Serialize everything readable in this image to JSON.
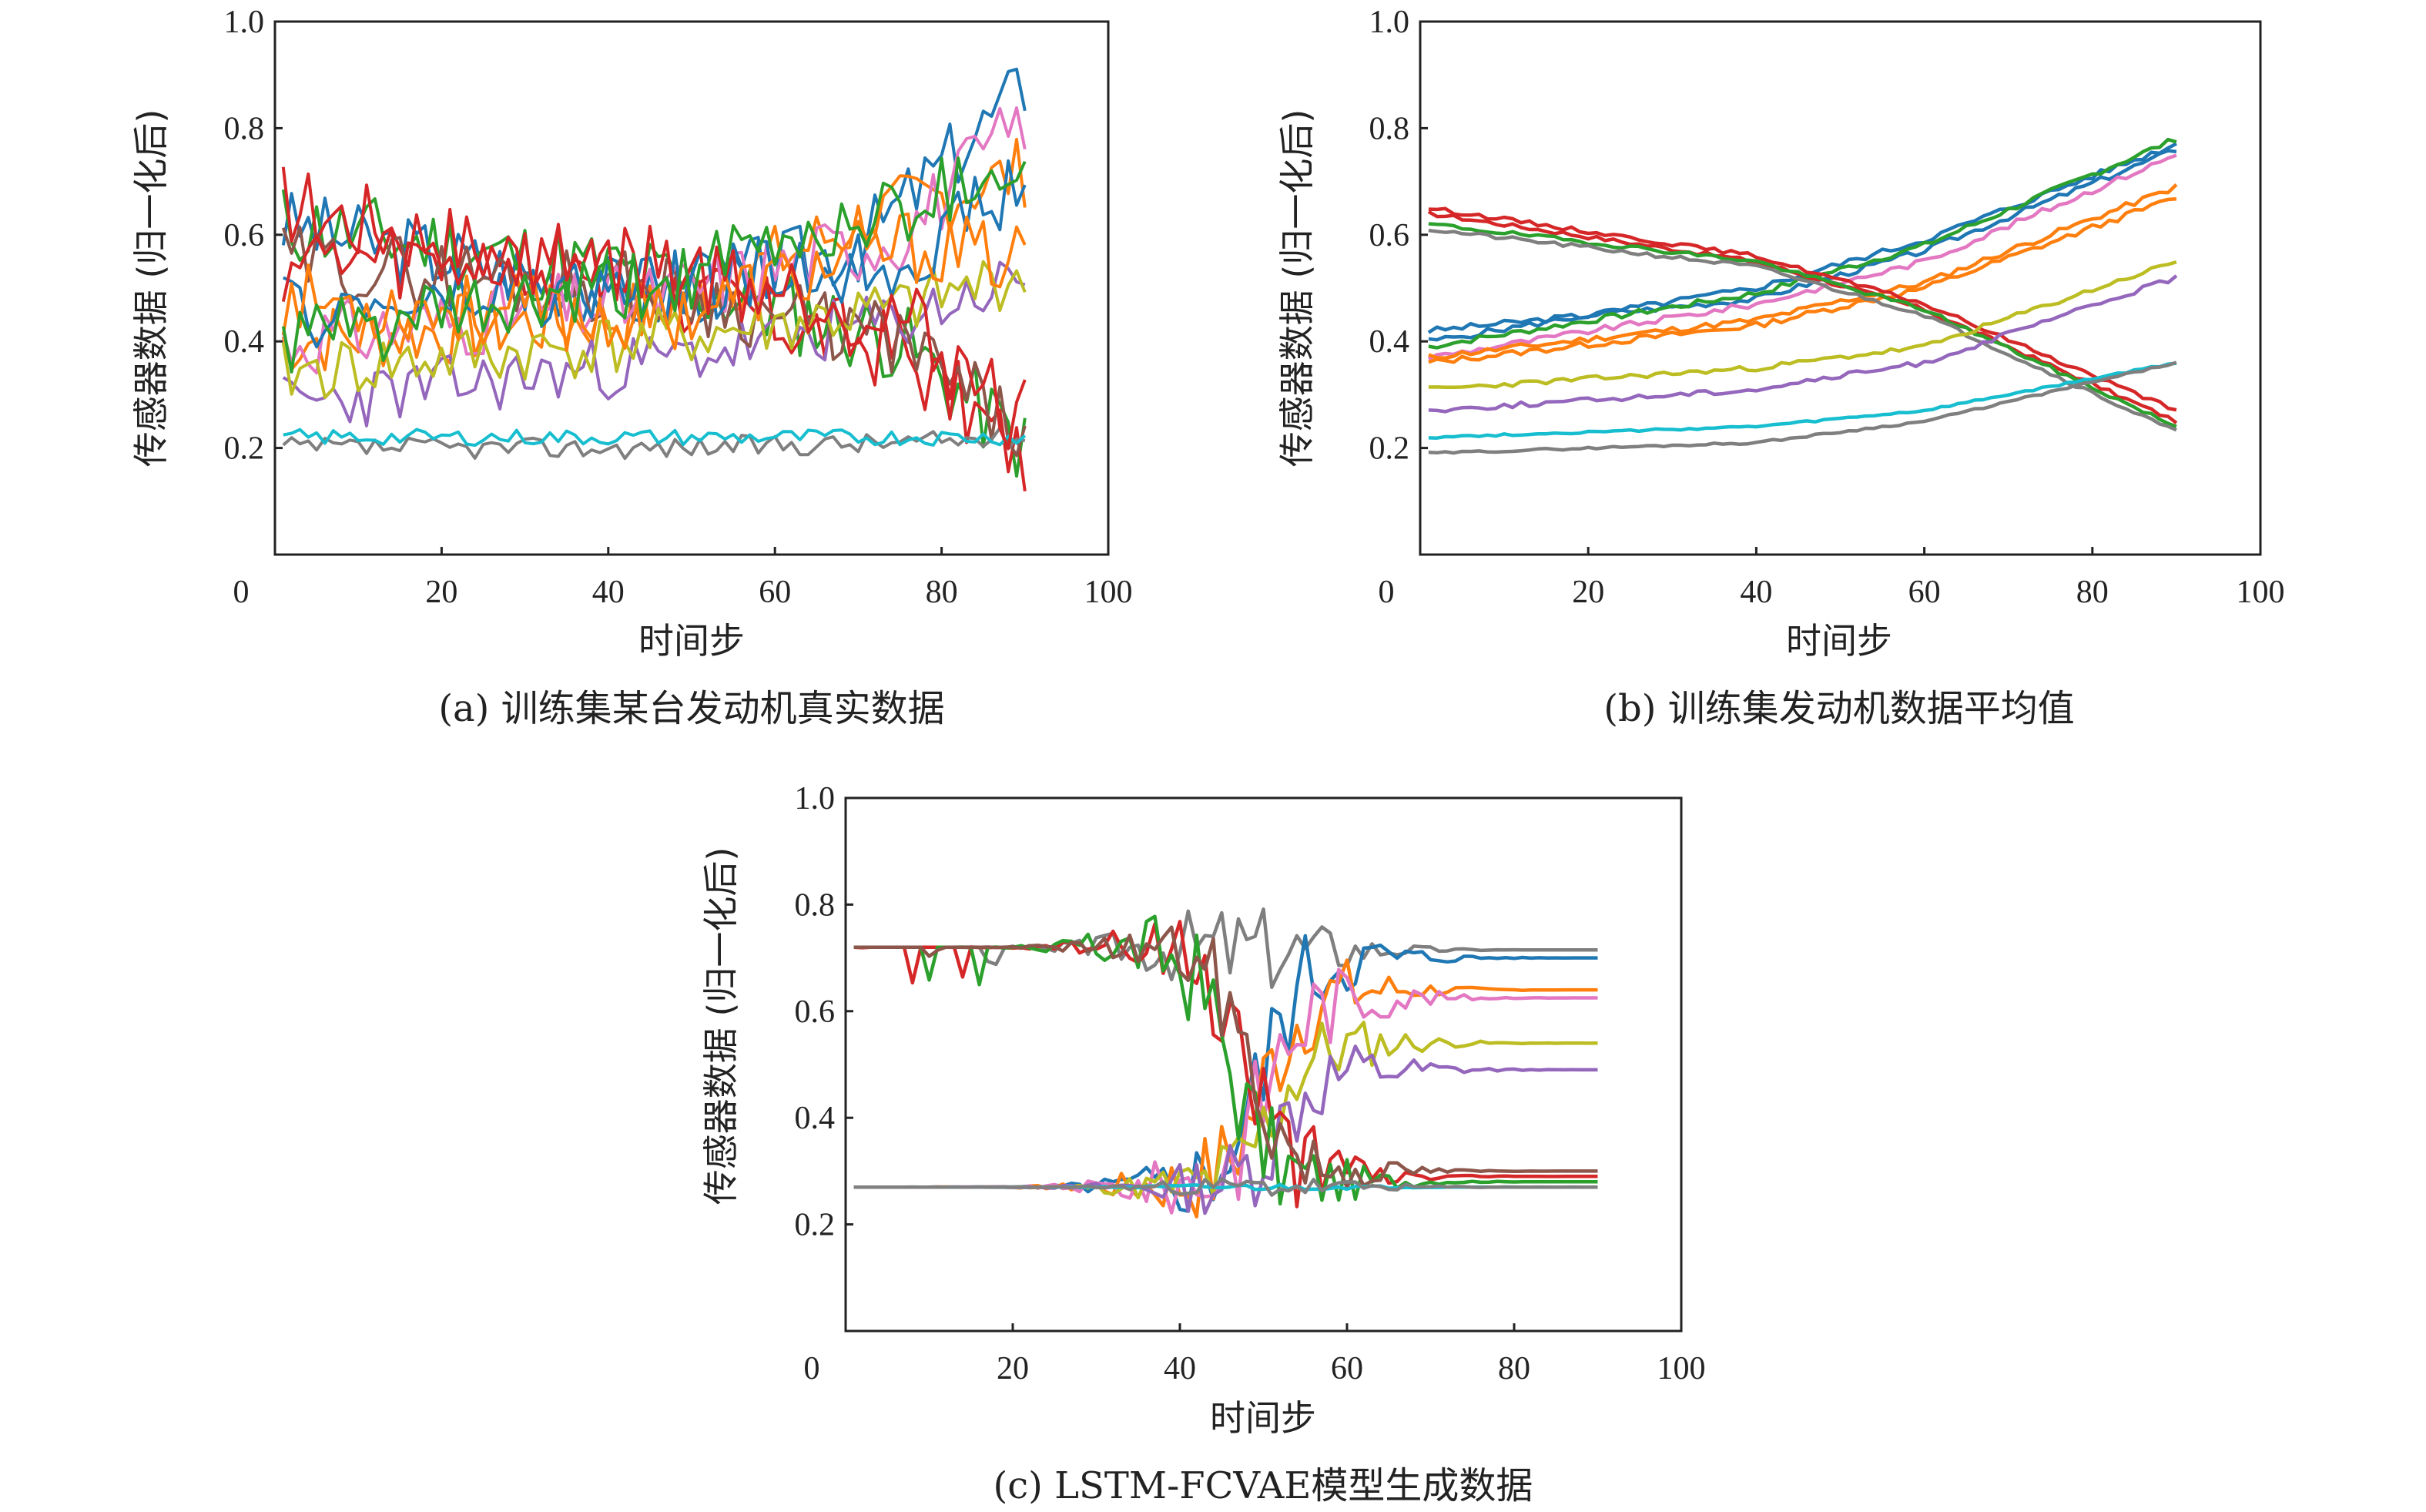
{
  "chart_data": [
    {
      "id": "a",
      "type": "line",
      "caption": "(a) 训练集某台发动机真实数据",
      "xlabel": "时间步",
      "ylabel": "传感器数据 (归一化后)",
      "xlim": [
        0,
        100
      ],
      "ylim": [
        0,
        1.0
      ],
      "xticks": [
        "0",
        "20",
        "40",
        "60",
        "80",
        "100"
      ],
      "yticks": [
        "0.2",
        "0.4",
        "0.6",
        "0.8",
        "1.0"
      ],
      "x_start": 1,
      "x_end": 90,
      "series": [
        {
          "color": "#1f77b4",
          "mode": "noisy",
          "p": [
            [
              1,
              0.62
            ],
            [
              45,
              0.48
            ],
            [
              70,
              0.58
            ],
            [
              90,
              0.88
            ]
          ],
          "amp": 0.07,
          "seed": 3
        },
        {
          "color": "#ff7f0e",
          "mode": "noisy",
          "p": [
            [
              1,
              0.4
            ],
            [
              45,
              0.45
            ],
            [
              70,
              0.62
            ],
            [
              90,
              0.72
            ]
          ],
          "amp": 0.07,
          "seed": 7
        },
        {
          "color": "#2ca02c",
          "mode": "noisy",
          "p": [
            [
              1,
              0.62
            ],
            [
              45,
              0.52
            ],
            [
              75,
              0.4
            ],
            [
              90,
              0.2
            ]
          ],
          "amp": 0.08,
          "seed": 11
        },
        {
          "color": "#d62728",
          "mode": "noisy",
          "p": [
            [
              1,
              0.66
            ],
            [
              45,
              0.5
            ],
            [
              75,
              0.38
            ],
            [
              90,
              0.18
            ]
          ],
          "amp": 0.08,
          "seed": 17
        },
        {
          "color": "#9467bd",
          "mode": "noisy",
          "p": [
            [
              1,
              0.28
            ],
            [
              45,
              0.36
            ],
            [
              75,
              0.44
            ],
            [
              90,
              0.52
            ]
          ],
          "amp": 0.06,
          "seed": 23
        },
        {
          "color": "#8c564b",
          "mode": "noisy",
          "p": [
            [
              1,
              0.55
            ],
            [
              45,
              0.5
            ],
            [
              75,
              0.4
            ],
            [
              90,
              0.22
            ]
          ],
          "amp": 0.07,
          "seed": 29
        },
        {
          "color": "#e377c2",
          "mode": "noisy",
          "p": [
            [
              1,
              0.4
            ],
            [
              45,
              0.48
            ],
            [
              75,
              0.6
            ],
            [
              90,
              0.82
            ]
          ],
          "amp": 0.07,
          "seed": 31
        },
        {
          "color": "#7f7f7f",
          "mode": "noisy",
          "p": [
            [
              1,
              0.2
            ],
            [
              45,
              0.2
            ],
            [
              75,
              0.21
            ],
            [
              90,
              0.22
            ]
          ],
          "amp": 0.02,
          "seed": 37
        },
        {
          "color": "#bcbd22",
          "mode": "noisy",
          "p": [
            [
              1,
              0.34
            ],
            [
              45,
              0.4
            ],
            [
              75,
              0.46
            ],
            [
              90,
              0.53
            ]
          ],
          "amp": 0.06,
          "seed": 41
        },
        {
          "color": "#17becf",
          "mode": "noisy",
          "p": [
            [
              1,
              0.22
            ],
            [
              45,
              0.22
            ],
            [
              75,
              0.22
            ],
            [
              90,
              0.22
            ]
          ],
          "amp": 0.015,
          "seed": 43
        },
        {
          "color": "#1f77b4",
          "mode": "noisy",
          "p": [
            [
              1,
              0.45
            ],
            [
              45,
              0.5
            ],
            [
              75,
              0.55
            ],
            [
              90,
              0.7
            ]
          ],
          "amp": 0.07,
          "seed": 47
        },
        {
          "color": "#ff7f0e",
          "mode": "noisy",
          "p": [
            [
              1,
              0.48
            ],
            [
              45,
              0.44
            ],
            [
              75,
              0.58
            ],
            [
              90,
              0.55
            ]
          ],
          "amp": 0.07,
          "seed": 53
        },
        {
          "color": "#d62728",
          "mode": "noisy",
          "p": [
            [
              1,
              0.55
            ],
            [
              45,
              0.55
            ],
            [
              75,
              0.45
            ],
            [
              90,
              0.25
            ]
          ],
          "amp": 0.08,
          "seed": 59
        },
        {
          "color": "#2ca02c",
          "mode": "noisy",
          "p": [
            [
              1,
              0.4
            ],
            [
              45,
              0.5
            ],
            [
              75,
              0.65
            ],
            [
              90,
              0.75
            ]
          ],
          "amp": 0.07,
          "seed": 61
        }
      ]
    },
    {
      "id": "b",
      "type": "line",
      "caption": "(b) 训练集发动机数据平均值",
      "xlabel": "时间步",
      "ylabel": "传感器数据 (归一化后)",
      "xlim": [
        0,
        100
      ],
      "ylim": [
        0,
        1.0
      ],
      "xticks": [
        "0",
        "20",
        "40",
        "60",
        "80",
        "100"
      ],
      "yticks": [
        "0.2",
        "0.4",
        "0.6",
        "0.8",
        "1.0"
      ],
      "x_start": 1,
      "x_end": 90,
      "series": [
        {
          "color": "#1f77b4",
          "mode": "smooth",
          "p": [
            [
              1,
              0.42
            ],
            [
              40,
              0.48
            ],
            [
              60,
              0.57
            ],
            [
              90,
              0.76
            ]
          ],
          "amp": 0.006,
          "seed": 3
        },
        {
          "color": "#1f77b4",
          "mode": "smooth",
          "p": [
            [
              1,
              0.4
            ],
            [
              40,
              0.5
            ],
            [
              60,
              0.59
            ],
            [
              90,
              0.77
            ]
          ],
          "amp": 0.006,
          "seed": 5
        },
        {
          "color": "#2ca02c",
          "mode": "smooth",
          "p": [
            [
              1,
              0.39
            ],
            [
              40,
              0.49
            ],
            [
              60,
              0.58
            ],
            [
              90,
              0.78
            ]
          ],
          "amp": 0.006,
          "seed": 7
        },
        {
          "color": "#e377c2",
          "mode": "smooth",
          "p": [
            [
              1,
              0.37
            ],
            [
              40,
              0.47
            ],
            [
              60,
              0.55
            ],
            [
              90,
              0.75
            ]
          ],
          "amp": 0.006,
          "seed": 9
        },
        {
          "color": "#ff7f0e",
          "mode": "smooth",
          "p": [
            [
              1,
              0.37
            ],
            [
              40,
              0.44
            ],
            [
              60,
              0.51
            ],
            [
              90,
              0.69
            ]
          ],
          "amp": 0.006,
          "seed": 11
        },
        {
          "color": "#ff7f0e",
          "mode": "smooth",
          "p": [
            [
              1,
              0.36
            ],
            [
              40,
              0.43
            ],
            [
              60,
              0.5
            ],
            [
              90,
              0.67
            ]
          ],
          "amp": 0.006,
          "seed": 13
        },
        {
          "color": "#d62728",
          "mode": "smooth",
          "p": [
            [
              1,
              0.65
            ],
            [
              40,
              0.56
            ],
            [
              60,
              0.47
            ],
            [
              90,
              0.27
            ]
          ],
          "amp": 0.004,
          "seed": 15
        },
        {
          "color": "#d62728",
          "mode": "smooth",
          "p": [
            [
              1,
              0.64
            ],
            [
              40,
              0.55
            ],
            [
              60,
              0.46
            ],
            [
              90,
              0.25
            ]
          ],
          "amp": 0.004,
          "seed": 17
        },
        {
          "color": "#2ca02c",
          "mode": "smooth",
          "p": [
            [
              1,
              0.62
            ],
            [
              40,
              0.55
            ],
            [
              60,
              0.46
            ],
            [
              90,
              0.24
            ]
          ],
          "amp": 0.004,
          "seed": 19
        },
        {
          "color": "#7f7f7f",
          "mode": "smooth",
          "p": [
            [
              1,
              0.61
            ],
            [
              40,
              0.54
            ],
            [
              60,
              0.45
            ],
            [
              90,
              0.23
            ]
          ],
          "amp": 0.004,
          "seed": 21
        },
        {
          "color": "#bcbd22",
          "mode": "smooth",
          "p": [
            [
              1,
              0.31
            ],
            [
              40,
              0.35
            ],
            [
              60,
              0.39
            ],
            [
              90,
              0.55
            ]
          ],
          "amp": 0.005,
          "seed": 23
        },
        {
          "color": "#9467bd",
          "mode": "smooth",
          "p": [
            [
              1,
              0.27
            ],
            [
              40,
              0.31
            ],
            [
              60,
              0.36
            ],
            [
              90,
              0.52
            ]
          ],
          "amp": 0.005,
          "seed": 25
        },
        {
          "color": "#17becf",
          "mode": "smooth",
          "p": [
            [
              1,
              0.22
            ],
            [
              40,
              0.24
            ],
            [
              60,
              0.27
            ],
            [
              90,
              0.36
            ]
          ],
          "amp": 0.002,
          "seed": 27
        },
        {
          "color": "#7f7f7f",
          "mode": "smooth",
          "p": [
            [
              1,
              0.19
            ],
            [
              40,
              0.21
            ],
            [
              60,
              0.25
            ],
            [
              90,
              0.36
            ]
          ],
          "amp": 0.002,
          "seed": 29
        }
      ]
    },
    {
      "id": "c",
      "type": "line",
      "caption": "(c) LSTM-FCVAE模型生成数据",
      "xlabel": "时间步",
      "ylabel": "传感器数据 (归一化后)",
      "xlim": [
        0,
        100
      ],
      "ylim": [
        0,
        1.0
      ],
      "xticks": [
        "0",
        "20",
        "40",
        "60",
        "80",
        "100"
      ],
      "yticks": [
        "0.2",
        "0.4",
        "0.6",
        "0.8",
        "1.0"
      ],
      "x_start": 1,
      "x_end": 90,
      "series": [
        {
          "color": "#7f7f7f",
          "mode": "trans",
          "start": 0.72,
          "end": 0.715,
          "center": 47,
          "width": 7,
          "amp": 0.04,
          "seed": 3
        },
        {
          "color": "#1f77b4",
          "mode": "trans",
          "start": 0.27,
          "end": 0.7,
          "center": 50,
          "width": 7,
          "amp": 0.05,
          "seed": 5
        },
        {
          "color": "#ff7f0e",
          "mode": "trans",
          "start": 0.27,
          "end": 0.64,
          "center": 50,
          "width": 7,
          "amp": 0.05,
          "seed": 7
        },
        {
          "color": "#e377c2",
          "mode": "trans",
          "start": 0.27,
          "end": 0.625,
          "center": 50,
          "width": 7,
          "amp": 0.05,
          "seed": 9
        },
        {
          "color": "#bcbd22",
          "mode": "trans",
          "start": 0.27,
          "end": 0.54,
          "center": 51,
          "width": 7,
          "amp": 0.04,
          "seed": 11
        },
        {
          "color": "#9467bd",
          "mode": "trans",
          "start": 0.27,
          "end": 0.49,
          "center": 52,
          "width": 7,
          "amp": 0.04,
          "seed": 13
        },
        {
          "color": "#d62728",
          "mode": "trans",
          "start": 0.72,
          "end": 0.29,
          "center": 48,
          "width": 7,
          "amp": 0.05,
          "seed": 15
        },
        {
          "color": "#2ca02c",
          "mode": "trans",
          "start": 0.72,
          "end": 0.28,
          "center": 46,
          "width": 7,
          "amp": 0.05,
          "seed": 17
        },
        {
          "color": "#8c564b",
          "mode": "trans",
          "start": 0.72,
          "end": 0.3,
          "center": 48,
          "width": 7,
          "amp": 0.04,
          "seed": 19
        },
        {
          "color": "#17becf",
          "mode": "trans",
          "start": 0.27,
          "end": 0.27,
          "center": 50,
          "width": 7,
          "amp": 0.003,
          "seed": 21
        },
        {
          "color": "#7f7f7f",
          "mode": "trans",
          "start": 0.27,
          "end": 0.27,
          "center": 50,
          "width": 7,
          "amp": 0.01,
          "seed": 23
        }
      ]
    }
  ]
}
